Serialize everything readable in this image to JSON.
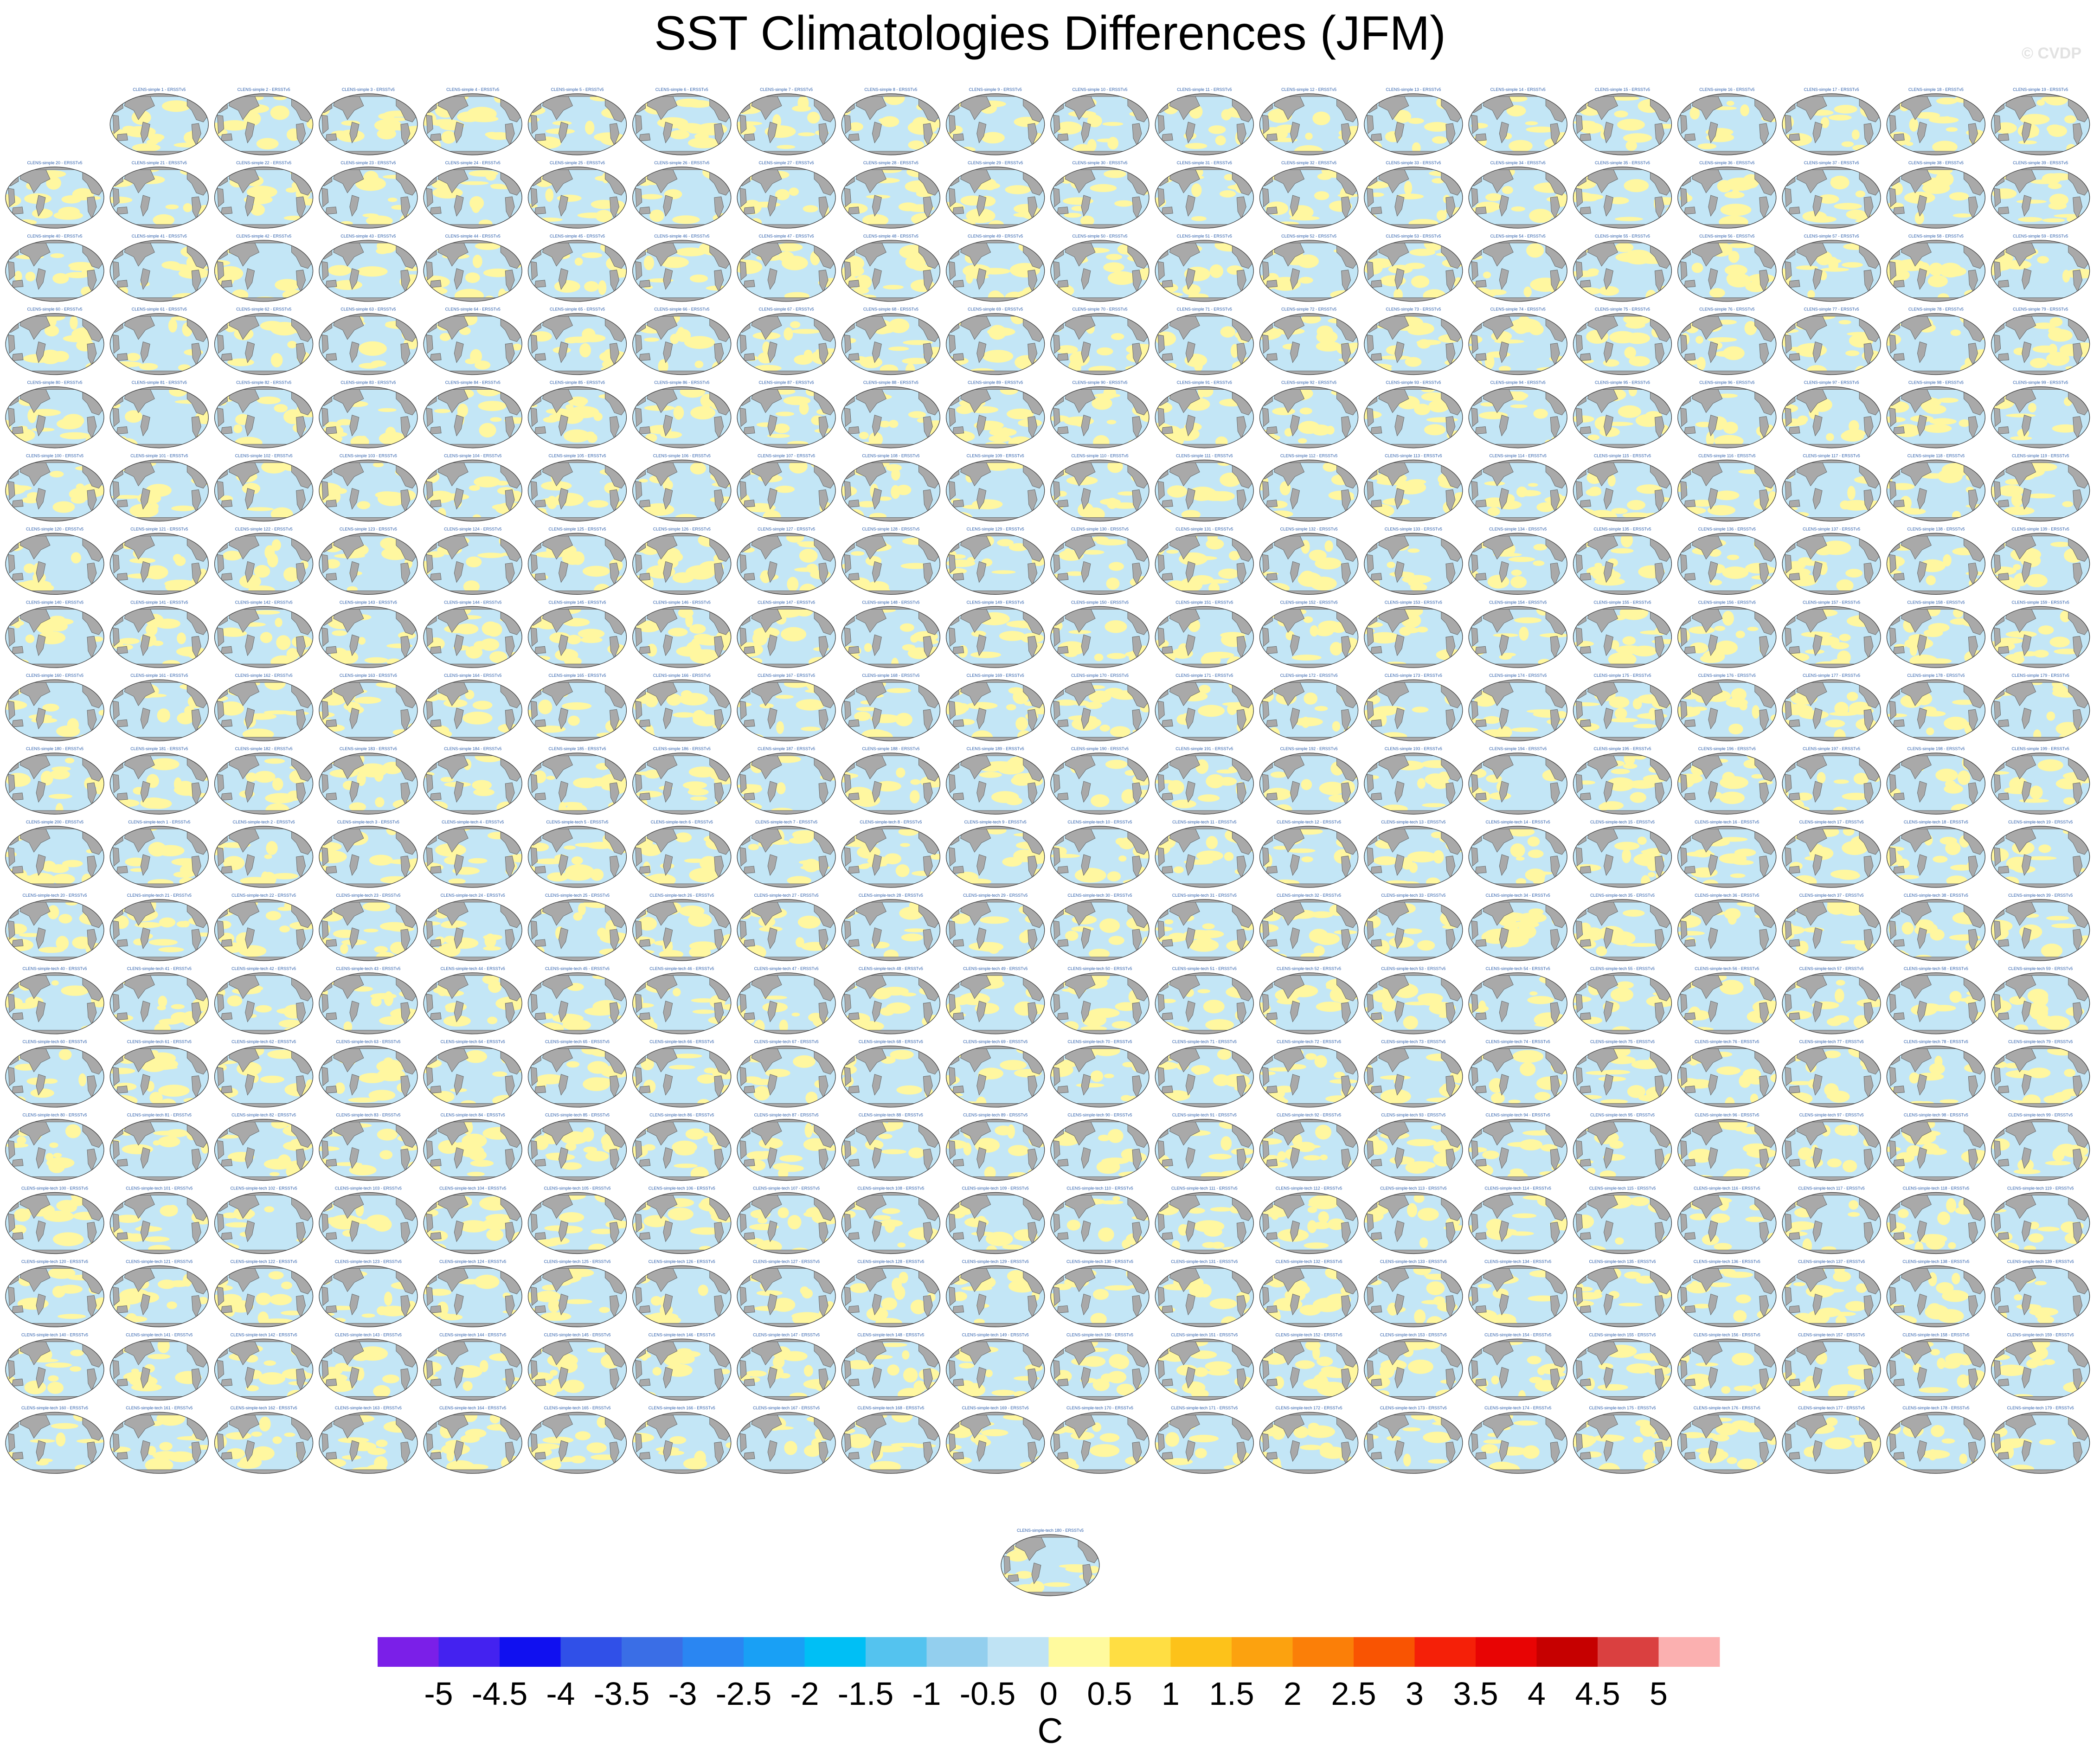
{
  "title": "SST Climatologies Differences (JFM)",
  "watermark": "© CVDP",
  "chart_data": {
    "type": "heatmap",
    "title": "SST Climatologies Differences (JFM)",
    "description_free": true,
    "panel_count": 380,
    "panel_title_prefix_1": "CLENS-simple",
    "panel_title_prefix_2": "CLENS-simple-tech",
    "panel_title_suffix": "ERSSTv5",
    "layout": {
      "cols": 20,
      "rows": 19,
      "first_row_start_col": 1,
      "trailing_single_panel": true
    },
    "colorbar": {
      "unit": "C",
      "levels": [
        -5,
        -4.5,
        -4,
        -3.5,
        -3,
        -2.5,
        -2,
        -1.5,
        -1,
        -0.5,
        0,
        0.5,
        1,
        1.5,
        2,
        2.5,
        3,
        3.5,
        4,
        4.5,
        5
      ],
      "tick_labels": [
        "-5",
        "-4.5",
        "-4",
        "-3.5",
        "-3",
        "-2.5",
        "-2",
        "-1.5",
        "-1",
        "-0.5",
        "0",
        "0.5",
        "1",
        "1.5",
        "2",
        "2.5",
        "3",
        "3.5",
        "4",
        "4.5",
        "5"
      ],
      "colors": [
        "#7b1fe8",
        "#4422f0",
        "#1010f0",
        "#3050e8",
        "#3a6ee6",
        "#2a86f2",
        "#19a0f5",
        "#00bff5",
        "#54c3ef",
        "#93cfee",
        "#bfe3f4",
        "#fffa9e",
        "#ffde43",
        "#fdc21a",
        "#fca20f",
        "#fb7f08",
        "#f95402",
        "#f52008",
        "#e80404",
        "#c60000",
        "#da4040",
        "#fbb0b0"
      ]
    },
    "dominant_values": {
      "positive_small": "#fff7a0",
      "negative_small": "#c3e6f6",
      "land": "#a9a9a9"
    }
  }
}
